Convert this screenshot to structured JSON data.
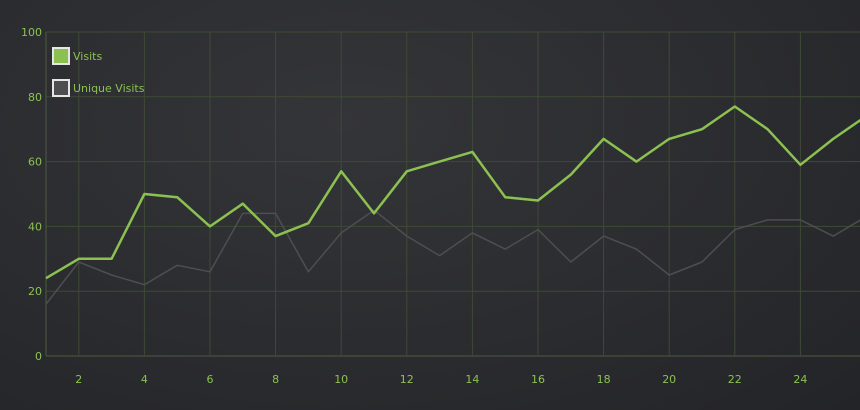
{
  "colors": {
    "grid": "#3e4a35",
    "axis": "#4d5a40",
    "label": "#8cc152"
  },
  "chart_data": {
    "type": "line",
    "x": [
      1,
      2,
      3,
      4,
      5,
      6,
      7,
      8,
      9,
      10,
      11,
      12,
      13,
      14,
      15,
      16,
      17,
      18,
      19,
      20,
      21,
      22,
      23,
      24,
      25,
      26
    ],
    "xticks": [
      "2",
      "4",
      "6",
      "8",
      "10",
      "12",
      "14",
      "16",
      "18",
      "20",
      "22",
      "24"
    ],
    "yticks": [
      "0",
      "20",
      "40",
      "60",
      "80",
      "100"
    ],
    "xlim": [
      1,
      26
    ],
    "ylim": [
      0,
      100
    ],
    "grid": true,
    "legend_position": "top-left",
    "series": [
      {
        "name": "Visits",
        "color": "#8cc152",
        "values": [
          24,
          30,
          30,
          50,
          49,
          40,
          47,
          37,
          41,
          57,
          44,
          57,
          60,
          63,
          49,
          48,
          56,
          67,
          60,
          67,
          70,
          77,
          70,
          59,
          67,
          74
        ]
      },
      {
        "name": "Unique Visits",
        "color": "#4e4e50",
        "values": [
          16,
          29,
          25,
          22,
          28,
          26,
          44,
          44,
          26,
          38,
          45,
          37,
          31,
          38,
          33,
          39,
          29,
          37,
          33,
          25,
          29,
          39,
          42,
          42,
          37,
          43
        ]
      }
    ]
  }
}
